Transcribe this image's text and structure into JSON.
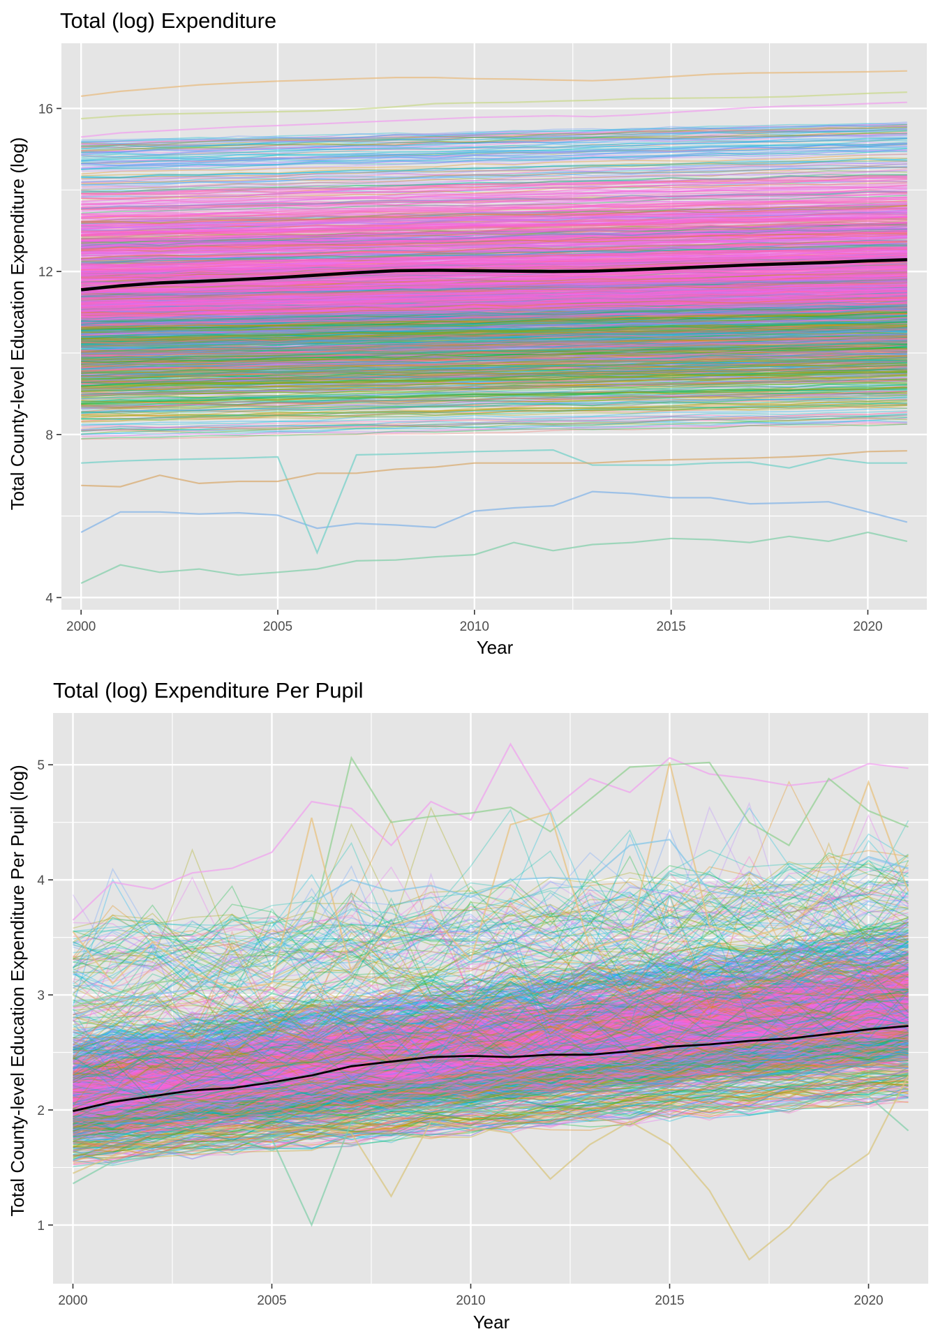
{
  "chart_data": [
    {
      "type": "line",
      "title": "Total (log) Expenditure",
      "xlabel": "Year",
      "ylabel": "Total County-level Education Expenditure (log)",
      "xlim": [
        1999.5,
        2021.5
      ],
      "ylim": [
        3.7,
        17.6
      ],
      "x_ticks": [
        2000,
        2005,
        2010,
        2015,
        2020
      ],
      "x_tick_labels": [
        "2000",
        "2005",
        "2010",
        "2015",
        "2020"
      ],
      "y_ticks": [
        4,
        8,
        12,
        16
      ],
      "y_tick_labels": [
        "4",
        "8",
        "12",
        "16"
      ],
      "y_minor_grid": [
        6,
        10,
        14
      ],
      "x_minor_grid": [
        2002.5,
        2007.5,
        2012.5,
        2017.5
      ],
      "grid": true,
      "legend": "none",
      "background": "#e5e5e5",
      "x": [
        2000,
        2001,
        2002,
        2003,
        2004,
        2005,
        2006,
        2007,
        2008,
        2009,
        2010,
        2011,
        2012,
        2013,
        2014,
        2015,
        2016,
        2017,
        2018,
        2019,
        2020,
        2021
      ],
      "mean_series": {
        "name": "",
        "color": "#000000",
        "values": [
          11.55,
          11.65,
          11.72,
          11.76,
          11.8,
          11.85,
          11.91,
          11.97,
          12.02,
          12.03,
          12.02,
          12.01,
          12.0,
          12.01,
          12.04,
          12.08,
          12.12,
          12.16,
          12.19,
          12.22,
          12.26,
          12.29
        ]
      },
      "highlighted_series": [
        {
          "color": "#e8b97a",
          "values": [
            16.3,
            16.42,
            16.5,
            16.58,
            16.63,
            16.67,
            16.7,
            16.73,
            16.76,
            16.76,
            16.73,
            16.72,
            16.7,
            16.68,
            16.72,
            16.78,
            16.84,
            16.87,
            16.88,
            16.89,
            16.9,
            16.92
          ]
        },
        {
          "color": "#c9d88a",
          "values": [
            15.75,
            15.82,
            15.86,
            15.88,
            15.9,
            15.92,
            15.94,
            15.98,
            16.04,
            16.12,
            16.14,
            16.15,
            16.18,
            16.2,
            16.24,
            16.25,
            16.26,
            16.27,
            16.29,
            16.33,
            16.37,
            16.4
          ]
        },
        {
          "color": "#f1a0f0",
          "values": [
            15.3,
            15.4,
            15.45,
            15.5,
            15.55,
            15.58,
            15.62,
            15.66,
            15.7,
            15.74,
            15.78,
            15.8,
            15.82,
            15.8,
            15.84,
            15.9,
            15.96,
            16.02,
            16.06,
            16.08,
            16.12,
            16.15
          ]
        },
        {
          "color": "#7fb2e8",
          "values": [
            5.6,
            6.1,
            6.1,
            6.05,
            6.08,
            6.02,
            5.7,
            5.82,
            5.78,
            5.72,
            6.12,
            6.2,
            6.25,
            6.6,
            6.55,
            6.45,
            6.45,
            6.3,
            6.32,
            6.35,
            6.1,
            5.85
          ]
        },
        {
          "color": "#7fcfa8",
          "values": [
            4.35,
            4.8,
            4.62,
            4.7,
            4.55,
            4.62,
            4.7,
            4.9,
            4.92,
            5.0,
            5.05,
            5.35,
            5.15,
            5.3,
            5.35,
            5.45,
            5.42,
            5.35,
            5.5,
            5.38,
            5.6,
            5.38
          ]
        },
        {
          "color": "#6fd0c8",
          "values": [
            7.3,
            7.35,
            7.38,
            7.4,
            7.42,
            7.45,
            5.1,
            7.5,
            7.52,
            7.55,
            7.58,
            7.6,
            7.62,
            7.25,
            7.25,
            7.25,
            7.3,
            7.32,
            7.18,
            7.42,
            7.3,
            7.3
          ]
        },
        {
          "color": "#d9a86a",
          "values": [
            6.75,
            6.72,
            7.0,
            6.8,
            6.85,
            6.85,
            7.05,
            7.05,
            7.15,
            7.2,
            7.3,
            7.3,
            7.3,
            7.3,
            7.35,
            7.38,
            7.4,
            7.42,
            7.45,
            7.5,
            7.58,
            7.6
          ]
        }
      ],
      "band": {
        "lower_edge": 7.9,
        "upper_edge": 15.2,
        "lower_drift": 0.35,
        "upper_drift": 0.45,
        "dense_low": 8.3,
        "dense_high": 13.8
      },
      "palette": [
        "#f8766d",
        "#e58700",
        "#c99800",
        "#a3a500",
        "#6bb100",
        "#00ba38",
        "#00bf7d",
        "#00c0af",
        "#00bcd8",
        "#00b0f6",
        "#619cff",
        "#b983ff",
        "#e76bf3",
        "#fd61d1",
        "#ff67a4"
      ]
    },
    {
      "type": "line",
      "title": "Total (log) Expenditure Per Pupil",
      "xlabel": "Year",
      "ylabel": "Total County-level Education Expenditure Per Pupil (log)",
      "xlim": [
        1999.5,
        2021.5
      ],
      "ylim": [
        0.49,
        5.45
      ],
      "x_ticks": [
        2000,
        2005,
        2010,
        2015,
        2020
      ],
      "x_tick_labels": [
        "2000",
        "2005",
        "2010",
        "2015",
        "2020"
      ],
      "y_ticks": [
        1,
        2,
        3,
        4,
        5
      ],
      "y_tick_labels": [
        "1",
        "2",
        "3",
        "4",
        "5"
      ],
      "y_minor_grid": [
        1.5,
        2.5,
        3.5,
        4.5
      ],
      "x_minor_grid": [
        2002.5,
        2007.5,
        2012.5,
        2017.5
      ],
      "grid": true,
      "legend": "none",
      "background": "#e5e5e5",
      "x": [
        2000,
        2001,
        2002,
        2003,
        2004,
        2005,
        2006,
        2007,
        2008,
        2009,
        2010,
        2011,
        2012,
        2013,
        2014,
        2015,
        2016,
        2017,
        2018,
        2019,
        2020,
        2021
      ],
      "mean_series": {
        "name": "",
        "color": "#000000",
        "values": [
          1.99,
          2.07,
          2.12,
          2.17,
          2.19,
          2.24,
          2.3,
          2.38,
          2.42,
          2.46,
          2.47,
          2.46,
          2.48,
          2.48,
          2.51,
          2.55,
          2.57,
          2.6,
          2.62,
          2.66,
          2.7,
          2.73
        ]
      },
      "highlighted_series": [
        {
          "color": "#f1a0f0",
          "values": [
            3.65,
            3.98,
            3.92,
            4.06,
            4.1,
            4.24,
            4.68,
            4.62,
            4.3,
            4.68,
            4.52,
            5.18,
            4.6,
            4.88,
            4.76,
            5.06,
            4.92,
            4.88,
            4.82,
            4.86,
            5.01,
            4.97
          ]
        },
        {
          "color": "#8fd08f",
          "values": [
            2.9,
            3.0,
            3.1,
            3.15,
            3.3,
            3.4,
            3.6,
            5.06,
            4.5,
            4.55,
            4.58,
            4.63,
            4.42,
            4.7,
            4.98,
            5.0,
            5.02,
            4.5,
            4.3,
            4.88,
            4.6,
            4.46
          ]
        },
        {
          "color": "#e8c07a",
          "values": [
            3.55,
            3.1,
            3.46,
            3.2,
            3.05,
            3.1,
            4.54,
            3.2,
            3.6,
            3.7,
            3.3,
            4.48,
            4.58,
            3.4,
            3.5,
            5.02,
            3.6,
            3.5,
            3.6,
            3.9,
            4.85,
            3.9
          ]
        },
        {
          "color": "#d8c47a",
          "values": [
            1.45,
            1.6,
            1.7,
            1.8,
            1.85,
            1.82,
            1.85,
            1.8,
            1.25,
            1.9,
            1.85,
            1.8,
            1.4,
            1.7,
            1.9,
            1.7,
            1.3,
            0.7,
            0.98,
            1.38,
            1.62,
            2.3
          ]
        },
        {
          "color": "#7fcfa8",
          "values": [
            1.36,
            1.55,
            1.6,
            1.7,
            1.72,
            1.75,
            1.0,
            1.9,
            2.0,
            2.02,
            2.0,
            1.98,
            1.95,
            1.95,
            2.0,
            2.02,
            2.05,
            2.0,
            2.05,
            2.1,
            2.12,
            1.82
          ]
        },
        {
          "color": "#7fc4e8",
          "values": [
            2.8,
            2.95,
            3.0,
            3.05,
            3.2,
            3.3,
            3.8,
            4.0,
            3.9,
            3.95,
            3.85,
            4.0,
            4.02,
            4.0,
            4.3,
            4.35,
            3.9,
            3.85,
            3.9,
            4.0,
            4.2,
            4.1
          ]
        }
      ],
      "band": {
        "lower_edge": 1.55,
        "upper_edge": 2.6,
        "lower_drift": 0.55,
        "upper_drift": 0.95,
        "dense_low": 1.75,
        "dense_high": 2.4
      },
      "palette": [
        "#f8766d",
        "#e58700",
        "#c99800",
        "#a3a500",
        "#6bb100",
        "#00ba38",
        "#00bf7d",
        "#00c0af",
        "#00bcd8",
        "#00b0f6",
        "#619cff",
        "#b983ff",
        "#e76bf3",
        "#fd61d1",
        "#ff67a4"
      ]
    }
  ]
}
